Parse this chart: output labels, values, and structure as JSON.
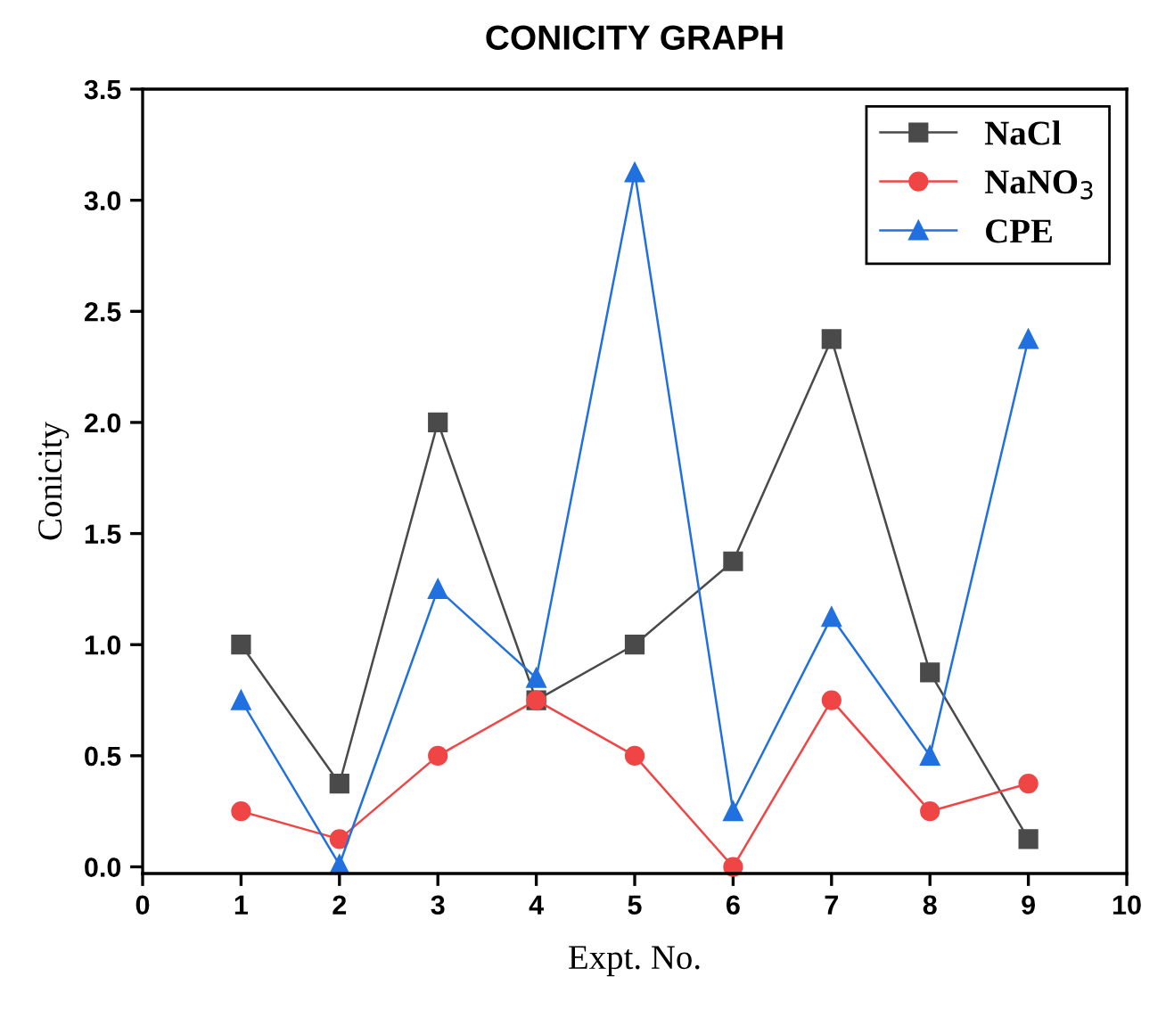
{
  "chart_data": {
    "type": "line",
    "title": "CONICITY GRAPH",
    "xlabel": "Expt. No.",
    "ylabel": "Conicity",
    "x": [
      1,
      2,
      3,
      4,
      5,
      6,
      7,
      8,
      9
    ],
    "series": [
      {
        "name": "NaCl",
        "color": "#4a4a4a",
        "marker": "square",
        "values": [
          1.0,
          0.375,
          2.0,
          0.75,
          1.0,
          1.375,
          2.375,
          0.875,
          0.125
        ]
      },
      {
        "name": "NaNO$_{3}$",
        "color": "#f04545",
        "marker": "circle",
        "values": [
          0.25,
          0.125,
          0.5,
          0.75,
          0.5,
          0.0,
          0.75,
          0.25,
          0.375
        ]
      },
      {
        "name": "CPE",
        "color": "#2070e0",
        "marker": "triangle",
        "values": [
          0.75,
          0.01,
          1.25,
          0.85,
          3.125,
          0.25,
          1.125,
          0.5,
          2.375
        ]
      }
    ],
    "xlim": [
      0,
      10
    ],
    "xticks": [
      0,
      1,
      2,
      3,
      4,
      5,
      6,
      7,
      8,
      9,
      10
    ],
    "ylim": [
      -0.03,
      3.5
    ],
    "yticks": [
      {
        "value": 0,
        "label": "0.0"
      },
      0.5,
      {
        "value": 1,
        "label": "1.0"
      },
      1.5,
      {
        "value": 2,
        "label": "2.0"
      },
      2.5,
      {
        "value": 3,
        "label": "3.0"
      },
      3.5
    ],
    "grid": false,
    "legend": "top right",
    "line_style": "solid"
  }
}
